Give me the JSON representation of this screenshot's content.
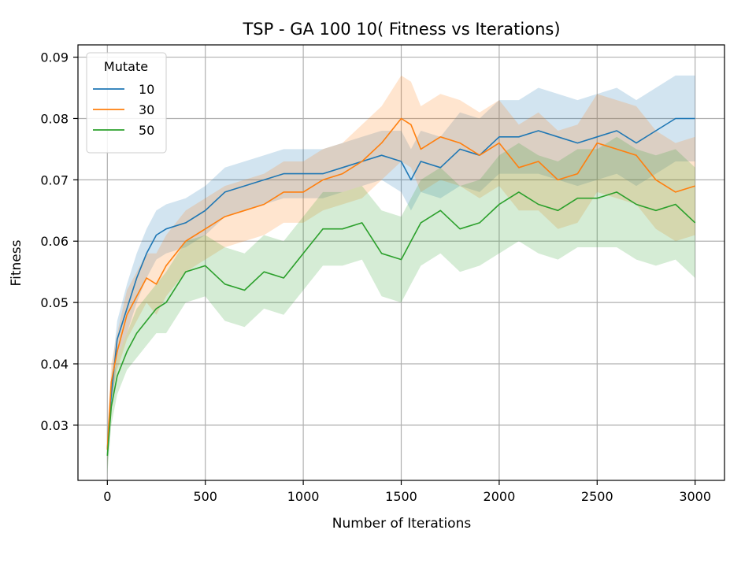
{
  "chart_data": {
    "type": "line",
    "title": "TSP - GA 100 10( Fitness vs Iterations)",
    "xlabel": "Number of Iterations",
    "ylabel": "Fitness",
    "xlim": [
      -150,
      3150
    ],
    "ylim": [
      0.021,
      0.092
    ],
    "xticks": [
      0,
      500,
      1000,
      1500,
      2000,
      2500,
      3000
    ],
    "xtick_labels": [
      "0",
      "500",
      "1000",
      "1500",
      "2000",
      "2500",
      "3000"
    ],
    "yticks": [
      0.03,
      0.04,
      0.05,
      0.06,
      0.07,
      0.08,
      0.09
    ],
    "ytick_labels": [
      "0.03",
      "0.04",
      "0.05",
      "0.06",
      "0.07",
      "0.08",
      "0.09"
    ],
    "grid": true,
    "legend": {
      "title": "Mutate",
      "placement": "top-left"
    },
    "x": [
      0,
      20,
      50,
      100,
      150,
      200,
      250,
      300,
      400,
      500,
      600,
      700,
      800,
      900,
      1000,
      1100,
      1200,
      1300,
      1400,
      1500,
      1550,
      1600,
      1700,
      1800,
      1900,
      2000,
      2100,
      2200,
      2300,
      2400,
      2500,
      2600,
      2700,
      2800,
      2900,
      3000
    ],
    "series": [
      {
        "name": "10",
        "color": "#1f77b4",
        "values": [
          0.026,
          0.035,
          0.044,
          0.049,
          0.054,
          0.058,
          0.061,
          0.062,
          0.063,
          0.065,
          0.068,
          0.069,
          0.07,
          0.071,
          0.071,
          0.071,
          0.072,
          0.073,
          0.074,
          0.073,
          0.07,
          0.073,
          0.072,
          0.075,
          0.074,
          0.077,
          0.077,
          0.078,
          0.077,
          0.076,
          0.077,
          0.078,
          0.076,
          0.078,
          0.08,
          0.08
        ],
        "band": [
          0.003,
          0.003,
          0.003,
          0.004,
          0.004,
          0.004,
          0.004,
          0.004,
          0.004,
          0.004,
          0.004,
          0.004,
          0.004,
          0.004,
          0.004,
          0.004,
          0.004,
          0.004,
          0.004,
          0.005,
          0.005,
          0.005,
          0.005,
          0.006,
          0.006,
          0.006,
          0.006,
          0.007,
          0.007,
          0.007,
          0.007,
          0.007,
          0.007,
          0.007,
          0.007,
          0.007
        ]
      },
      {
        "name": "30",
        "color": "#ff7f0e",
        "values": [
          0.026,
          0.037,
          0.042,
          0.048,
          0.051,
          0.054,
          0.053,
          0.056,
          0.06,
          0.062,
          0.064,
          0.065,
          0.066,
          0.068,
          0.068,
          0.07,
          0.071,
          0.073,
          0.076,
          0.08,
          0.079,
          0.075,
          0.077,
          0.076,
          0.074,
          0.076,
          0.072,
          0.073,
          0.07,
          0.071,
          0.076,
          0.075,
          0.074,
          0.07,
          0.068,
          0.069
        ],
        "band": [
          0.003,
          0.003,
          0.003,
          0.004,
          0.004,
          0.004,
          0.005,
          0.005,
          0.005,
          0.005,
          0.005,
          0.005,
          0.005,
          0.005,
          0.005,
          0.005,
          0.005,
          0.006,
          0.006,
          0.007,
          0.007,
          0.007,
          0.007,
          0.007,
          0.007,
          0.007,
          0.007,
          0.008,
          0.008,
          0.008,
          0.008,
          0.008,
          0.008,
          0.008,
          0.008,
          0.008
        ]
      },
      {
        "name": "50",
        "color": "#2ca02c",
        "values": [
          0.025,
          0.033,
          0.038,
          0.042,
          0.045,
          0.047,
          0.049,
          0.05,
          0.055,
          0.056,
          0.053,
          0.052,
          0.055,
          0.054,
          0.058,
          0.062,
          0.062,
          0.063,
          0.058,
          0.057,
          0.06,
          0.063,
          0.065,
          0.062,
          0.063,
          0.066,
          0.068,
          0.066,
          0.065,
          0.067,
          0.067,
          0.068,
          0.066,
          0.065,
          0.066,
          0.063
        ],
        "band": [
          0.003,
          0.003,
          0.003,
          0.003,
          0.004,
          0.004,
          0.004,
          0.005,
          0.005,
          0.005,
          0.006,
          0.006,
          0.006,
          0.006,
          0.006,
          0.006,
          0.006,
          0.006,
          0.007,
          0.007,
          0.007,
          0.007,
          0.007,
          0.007,
          0.007,
          0.008,
          0.008,
          0.008,
          0.008,
          0.008,
          0.008,
          0.009,
          0.009,
          0.009,
          0.009,
          0.009
        ]
      }
    ]
  }
}
